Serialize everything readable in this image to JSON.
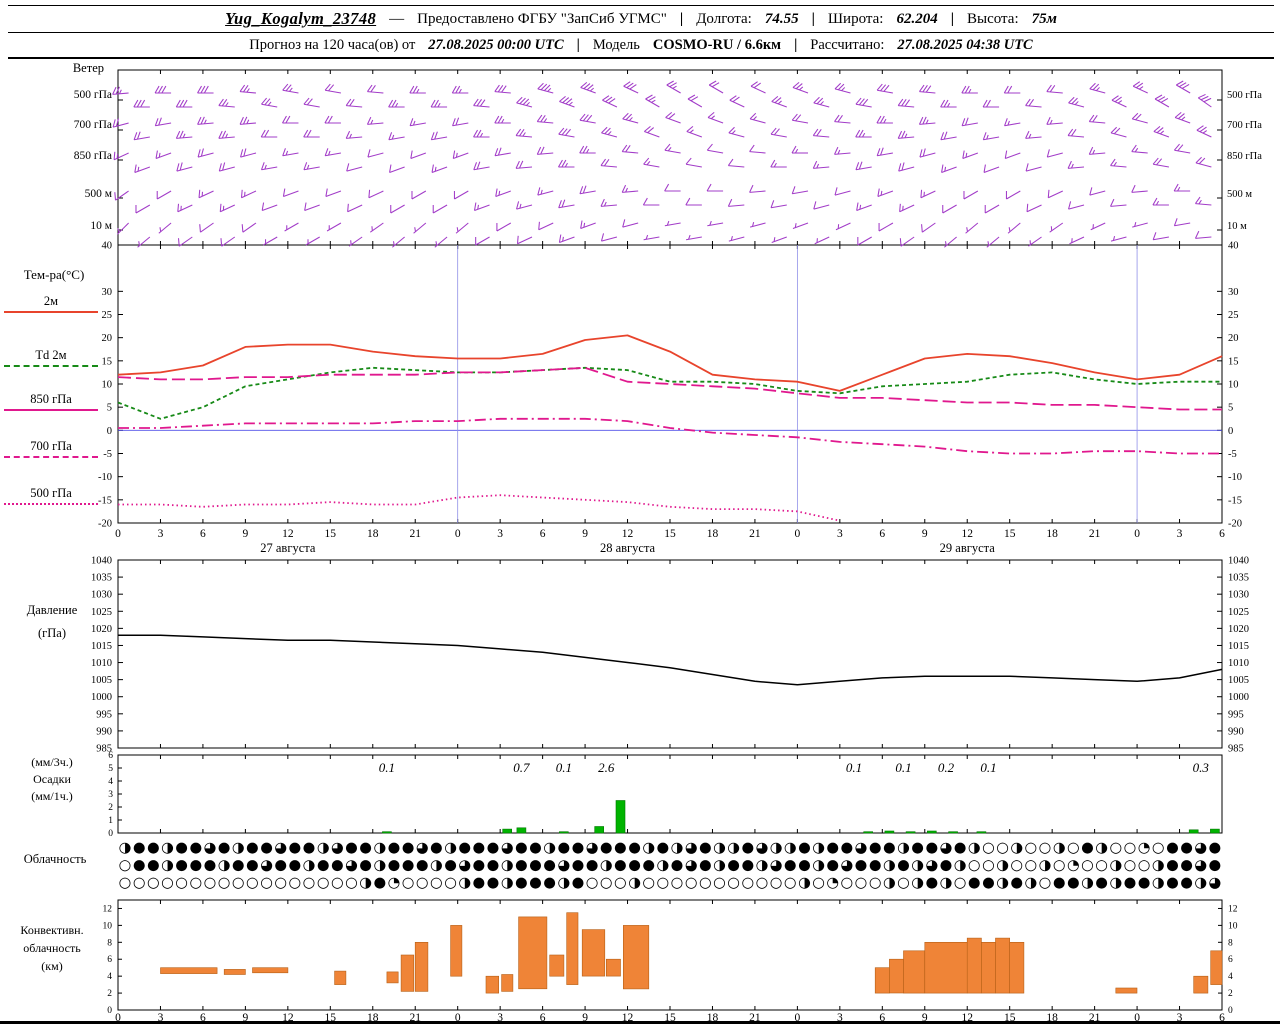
{
  "header": {
    "station": "Yug_Kogalym_23748",
    "dash": "—",
    "provider": "Предоставлено ФГБУ \"ЗапСиб УГМС\"",
    "sep": "|",
    "lon_label": "Долгота:",
    "lon": "74.55",
    "lat_label": "Широта:",
    "lat": "62.204",
    "alt_label": "Высота:",
    "alt": "75м",
    "line2": {
      "forecast_label": "Прогноз на 120 часа(ов) от",
      "forecast_time": "27.08.2025 00:00 UTC",
      "model_label": "Модель",
      "model": "COSMO-RU / 6.6км",
      "calc_label": "Рассчитано:",
      "calc_time": "27.08.2025 04:38 UTC"
    }
  },
  "labels": {
    "pressure1": "Давление",
    "pressure2": "(гПа)",
    "precip1": "(мм/3ч.)",
    "precip2": "Осадки",
    "precip3": "(мм/1ч.)",
    "conv1": "Конвективн.",
    "conv2": "облачность",
    "conv3": "(км)"
  },
  "axis": {
    "hour_labels": [
      0,
      3,
      6,
      9,
      12,
      15,
      18,
      21,
      0,
      3,
      6,
      9,
      12,
      15,
      18,
      21,
      0,
      3,
      6,
      9,
      12,
      15,
      18,
      21,
      0,
      3,
      6
    ],
    "date_labels": [
      {
        "h": 12,
        "text": "27 августа"
      },
      {
        "h": 36,
        "text": "28 августа"
      },
      {
        "h": 60,
        "text": "29 августа"
      }
    ]
  },
  "chart_data": [
    {
      "id": "wind",
      "type": "wind-barbs",
      "title": "Ветер",
      "unit": "kt",
      "hours_step": 3,
      "color": "#a23cc8",
      "levels": [
        {
          "name": "500 гПа",
          "dirs": [
            265,
            270,
            270,
            275,
            280,
            280,
            275,
            270,
            270,
            275,
            285,
            290,
            295,
            300,
            300,
            295,
            290,
            285,
            280,
            275,
            270,
            270,
            275,
            285,
            295,
            300,
            305
          ],
          "speeds": [
            25,
            30,
            30,
            25,
            25,
            20,
            20,
            25,
            25,
            30,
            35,
            35,
            30,
            25,
            20,
            20,
            25,
            25,
            30,
            30,
            25,
            20,
            20,
            25,
            25,
            30,
            30
          ]
        },
        {
          "name": "700 гПа",
          "dirs": [
            255,
            260,
            265,
            265,
            270,
            270,
            265,
            260,
            260,
            270,
            275,
            280,
            285,
            290,
            290,
            285,
            280,
            275,
            270,
            265,
            260,
            260,
            265,
            275,
            285,
            290,
            295
          ],
          "speeds": [
            20,
            20,
            25,
            25,
            20,
            20,
            15,
            15,
            20,
            25,
            25,
            30,
            25,
            20,
            15,
            15,
            20,
            20,
            25,
            25,
            20,
            15,
            15,
            20,
            20,
            25,
            25
          ]
        },
        {
          "name": "850 гПа",
          "dirs": [
            245,
            250,
            255,
            255,
            260,
            260,
            255,
            250,
            250,
            260,
            265,
            270,
            275,
            280,
            280,
            275,
            270,
            265,
            260,
            255,
            250,
            250,
            255,
            265,
            275,
            280,
            285
          ],
          "speeds": [
            15,
            15,
            20,
            20,
            15,
            15,
            10,
            10,
            15,
            20,
            20,
            25,
            20,
            15,
            10,
            10,
            15,
            15,
            20,
            20,
            15,
            10,
            10,
            15,
            15,
            20,
            20
          ]
        },
        {
          "name": "500 м",
          "dirs": [
            235,
            240,
            245,
            245,
            250,
            250,
            245,
            240,
            240,
            250,
            255,
            260,
            265,
            270,
            270,
            265,
            260,
            255,
            250,
            245,
            240,
            240,
            245,
            255,
            265,
            270,
            275
          ],
          "speeds": [
            10,
            10,
            15,
            15,
            10,
            10,
            10,
            10,
            10,
            15,
            15,
            20,
            15,
            10,
            10,
            10,
            10,
            10,
            15,
            15,
            10,
            10,
            10,
            10,
            10,
            15,
            15
          ]
        },
        {
          "name": "10 м",
          "dirs": [
            225,
            230,
            235,
            235,
            240,
            240,
            235,
            230,
            230,
            240,
            245,
            250,
            255,
            260,
            260,
            255,
            250,
            245,
            240,
            235,
            230,
            230,
            235,
            245,
            255,
            260,
            265
          ],
          "speeds": [
            5,
            5,
            10,
            10,
            5,
            5,
            5,
            5,
            5,
            10,
            10,
            15,
            10,
            5,
            5,
            5,
            5,
            5,
            10,
            10,
            5,
            5,
            5,
            5,
            5,
            10,
            10
          ]
        }
      ]
    },
    {
      "id": "temperature",
      "type": "line",
      "title": "Тем-ра(°C)",
      "ylim": [
        -20,
        40
      ],
      "yticks": [
        40,
        30,
        25,
        20,
        15,
        10,
        5,
        0,
        -5,
        -10,
        -15,
        -20
      ],
      "x_hours": [
        0,
        3,
        6,
        9,
        12,
        15,
        18,
        21,
        24,
        27,
        30,
        33,
        36,
        39,
        42,
        45,
        48,
        51,
        54,
        57,
        60,
        63,
        66,
        69,
        72,
        75,
        78
      ],
      "series": [
        {
          "name": "2м",
          "color": "#e8442c",
          "style": "solid",
          "values": [
            12,
            12.5,
            14,
            18,
            18.5,
            18.5,
            17,
            16,
            15.5,
            15.5,
            16.5,
            19.5,
            20.5,
            17,
            12,
            11,
            10.5,
            8.5,
            12,
            15.5,
            16.5,
            16,
            14.5,
            12.5,
            11,
            12,
            16
          ]
        },
        {
          "name": "Td 2м",
          "color": "#178a17",
          "style": "short-dash",
          "values": [
            6,
            2.5,
            5,
            9.5,
            11,
            12.5,
            13.5,
            13,
            12.5,
            12.5,
            13,
            13.5,
            13,
            10.5,
            10.5,
            10,
            8.5,
            8,
            9.5,
            10,
            10.5,
            12,
            12.5,
            11,
            10,
            10.5,
            10.5
          ]
        },
        {
          "name": "850 гПа",
          "color": "#e0188e",
          "style": "long-dash",
          "values": [
            11.5,
            11,
            11,
            11.5,
            11.5,
            12,
            12,
            12,
            12.5,
            12.5,
            13,
            13.5,
            10.5,
            10,
            9.5,
            9,
            8,
            7,
            7,
            6.5,
            6,
            6,
            5.5,
            5.5,
            5,
            4.5,
            4.5
          ]
        },
        {
          "name": "700 гПа",
          "color": "#e0188e",
          "style": "dash-dot",
          "values": [
            0.5,
            0.5,
            1,
            1.5,
            1.5,
            1.5,
            1.5,
            2,
            2,
            2.5,
            2.5,
            2.5,
            2,
            0.5,
            -0.5,
            -1,
            -1.5,
            -2.5,
            -3,
            -3.5,
            -4.5,
            -5,
            -5,
            -4.5,
            -4.5,
            -5,
            -5
          ]
        },
        {
          "name": "500 гПа",
          "color": "#e0188e",
          "style": "fine-dot",
          "values": [
            -16,
            -16,
            -16.5,
            -16,
            -16,
            -15.5,
            -16,
            -16,
            -14.5,
            -14,
            -14.5,
            -15,
            -15.5,
            -16.5,
            -17,
            -17,
            -17.5,
            -19.5,
            null,
            null,
            null,
            null,
            null,
            null,
            null,
            null,
            null
          ]
        }
      ]
    },
    {
      "id": "pressure",
      "type": "line",
      "title": "Давление (гПа)",
      "ylim": [
        985,
        1040
      ],
      "yticks": [
        1040,
        1035,
        1030,
        1025,
        1020,
        1015,
        1010,
        1005,
        1000,
        995,
        990,
        985
      ],
      "x_hours": [
        0,
        3,
        6,
        9,
        12,
        15,
        18,
        21,
        24,
        27,
        30,
        33,
        36,
        39,
        42,
        45,
        48,
        51,
        54,
        57,
        60,
        63,
        66,
        69,
        72,
        75,
        78
      ],
      "series": [
        {
          "name": "Давление",
          "color": "#000000",
          "style": "solid",
          "values": [
            1018,
            1018,
            1017.5,
            1017,
            1016.5,
            1016.5,
            1016,
            1015.5,
            1015,
            1014,
            1013,
            1011.5,
            1010,
            1008.5,
            1006.5,
            1004.5,
            1003.5,
            1004.5,
            1005.5,
            1006,
            1006,
            1006,
            1005.5,
            1005,
            1004.5,
            1005.5,
            1008
          ]
        }
      ]
    },
    {
      "id": "precipitation",
      "type": "bar",
      "title": "Осадки (мм/1ч.)",
      "ylim": [
        0,
        6
      ],
      "yticks": [
        6,
        5,
        4,
        3,
        2,
        1,
        0
      ],
      "color": "#00b400",
      "bars": [
        {
          "h": 19,
          "v": 0.1
        },
        {
          "h": 27.5,
          "v": 0.3
        },
        {
          "h": 28.5,
          "v": 0.4
        },
        {
          "h": 31.5,
          "v": 0.1
        },
        {
          "h": 34,
          "v": 0.5
        },
        {
          "h": 35.5,
          "v": 2.5
        },
        {
          "h": 53,
          "v": 0.1
        },
        {
          "h": 54.5,
          "v": 0.15
        },
        {
          "h": 56,
          "v": 0.1
        },
        {
          "h": 57.5,
          "v": 0.15
        },
        {
          "h": 59,
          "v": 0.1
        },
        {
          "h": 61,
          "v": 0.1
        },
        {
          "h": 76,
          "v": 0.25
        },
        {
          "h": 77.5,
          "v": 0.3
        }
      ],
      "sum_labels": [
        {
          "h": 19,
          "text": "0.1"
        },
        {
          "h": 28.5,
          "text": "0.7"
        },
        {
          "h": 31.5,
          "text": "0.1"
        },
        {
          "h": 34.5,
          "text": "2.6"
        },
        {
          "h": 52,
          "text": "0.1"
        },
        {
          "h": 55.5,
          "text": "0.1"
        },
        {
          "h": 58.5,
          "text": "0.2"
        },
        {
          "h": 61.5,
          "text": "0.1"
        },
        {
          "h": 76.5,
          "text": "0.3"
        }
      ]
    },
    {
      "id": "cloudiness",
      "type": "symbol-rows",
      "title": "Облачность",
      "rows": [
        {
          "symbols": "◑●●◑●●◕●◑●●◕●●◑◕●●◑●●◕●◑●●●◕●●◑●●◕●●●◑●◑◕●◑◑●◕◑◑●◑●●◕●●◑●●◕●◑○○◑○○◑○●◑○○◔○●●◕●"
        },
        {
          "symbols": "○●●◑●●●◑●●◕●●◑●●◕●◑●●●◑●◕●●◑●●●◕●●◑●●●◑●◕●◑●●◑◕●●◑●◕●●◑●◑◕●◑○○◑○○◑○◔○○◑○○◑●●◕●"
        },
        {
          "symbols": "○○○○○○○○○○○○○○○○○◑●◔○○○○◑●●◑●●●◑●○○○◑○○○○○○○○○○○◑○◔○○○◑○◑●◑○●●◑●◑○●●◑●◑●●◑●●◑◕"
        }
      ]
    },
    {
      "id": "convective-cloud",
      "type": "range-bar",
      "title": "Конвективн. облачность (км)",
      "ylim": [
        0,
        13
      ],
      "yticks": [
        12,
        10,
        8,
        6,
        4,
        2,
        0
      ],
      "color": "#ef8437",
      "bars": [
        {
          "h": 3,
          "w": 4,
          "base": 4.3,
          "top": 5
        },
        {
          "h": 7.5,
          "w": 1.5,
          "base": 4.2,
          "top": 4.8
        },
        {
          "h": 9.5,
          "w": 2.5,
          "base": 4.4,
          "top": 5
        },
        {
          "h": 15.3,
          "w": 0.8,
          "base": 3,
          "top": 4.6
        },
        {
          "h": 19,
          "w": 0.8,
          "base": 3.2,
          "top": 4.5
        },
        {
          "h": 20,
          "w": 0.9,
          "base": 2.2,
          "top": 6.5
        },
        {
          "h": 21,
          "w": 0.9,
          "base": 2.2,
          "top": 8
        },
        {
          "h": 23.5,
          "w": 0.8,
          "base": 4,
          "top": 10
        },
        {
          "h": 26,
          "w": 0.9,
          "base": 2,
          "top": 4
        },
        {
          "h": 27.1,
          "w": 0.8,
          "base": 2.2,
          "top": 4.2
        },
        {
          "h": 28.3,
          "w": 2,
          "base": 2.5,
          "top": 11
        },
        {
          "h": 30.5,
          "w": 1,
          "base": 4,
          "top": 6.5
        },
        {
          "h": 31.7,
          "w": 0.8,
          "base": 3,
          "top": 11.5
        },
        {
          "h": 32.8,
          "w": 1.6,
          "base": 4,
          "top": 9.5
        },
        {
          "h": 34.5,
          "w": 1,
          "base": 4,
          "top": 6
        },
        {
          "h": 35.7,
          "w": 1.8,
          "base": 2.5,
          "top": 10
        },
        {
          "h": 53.5,
          "w": 1,
          "base": 2,
          "top": 5
        },
        {
          "h": 54.5,
          "w": 1,
          "base": 2,
          "top": 6
        },
        {
          "h": 55.5,
          "w": 1.5,
          "base": 2,
          "top": 7
        },
        {
          "h": 57,
          "w": 3,
          "base": 2,
          "top": 8
        },
        {
          "h": 60,
          "w": 1,
          "base": 2,
          "top": 8.5
        },
        {
          "h": 61,
          "w": 1,
          "base": 2,
          "top": 8
        },
        {
          "h": 62,
          "w": 1,
          "base": 2,
          "top": 8.5
        },
        {
          "h": 63,
          "w": 1,
          "base": 2,
          "top": 8
        },
        {
          "h": 70.5,
          "w": 1.5,
          "base": 2,
          "top": 2.6
        },
        {
          "h": 76,
          "w": 1,
          "base": 2,
          "top": 4
        },
        {
          "h": 77.2,
          "w": 0.9,
          "base": 3,
          "top": 7
        },
        {
          "h": 78,
          "w": 0.9,
          "base": 2,
          "top": 6
        }
      ]
    }
  ]
}
